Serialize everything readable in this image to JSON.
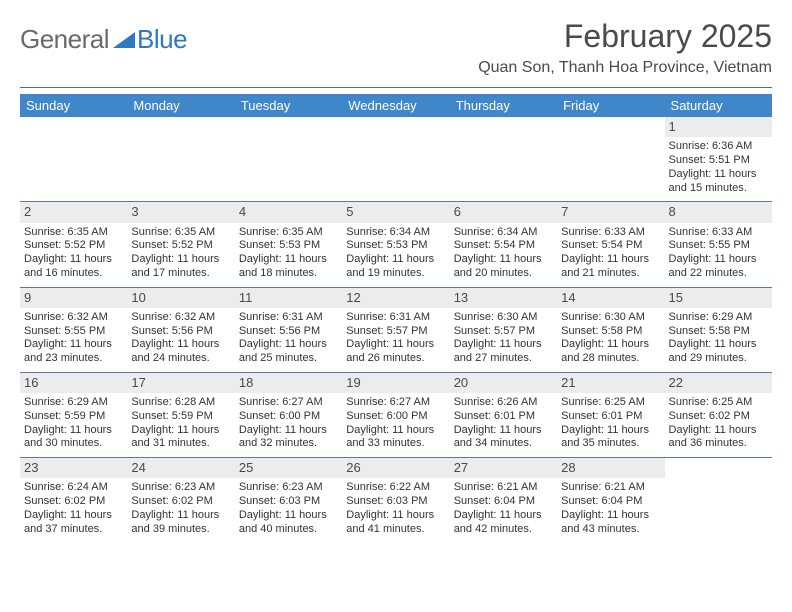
{
  "logo": {
    "text1": "General",
    "text2": "Blue",
    "color1": "#6a6a6a",
    "color2": "#2f78c3"
  },
  "title": "February 2025",
  "location": "Quan Son, Thanh Hoa Province, Vietnam",
  "header_bg": "#3f87c8",
  "daynum_bg": "#ececec",
  "rule_color": "#4a6ea0",
  "day_names": [
    "Sunday",
    "Monday",
    "Tuesday",
    "Wednesday",
    "Thursday",
    "Friday",
    "Saturday"
  ],
  "weeks": [
    [
      {
        "n": "",
        "sr": "",
        "ss": "",
        "dl": ""
      },
      {
        "n": "",
        "sr": "",
        "ss": "",
        "dl": ""
      },
      {
        "n": "",
        "sr": "",
        "ss": "",
        "dl": ""
      },
      {
        "n": "",
        "sr": "",
        "ss": "",
        "dl": ""
      },
      {
        "n": "",
        "sr": "",
        "ss": "",
        "dl": ""
      },
      {
        "n": "",
        "sr": "",
        "ss": "",
        "dl": ""
      },
      {
        "n": "1",
        "sr": "Sunrise: 6:36 AM",
        "ss": "Sunset: 5:51 PM",
        "dl": "Daylight: 11 hours and 15 minutes."
      }
    ],
    [
      {
        "n": "2",
        "sr": "Sunrise: 6:35 AM",
        "ss": "Sunset: 5:52 PM",
        "dl": "Daylight: 11 hours and 16 minutes."
      },
      {
        "n": "3",
        "sr": "Sunrise: 6:35 AM",
        "ss": "Sunset: 5:52 PM",
        "dl": "Daylight: 11 hours and 17 minutes."
      },
      {
        "n": "4",
        "sr": "Sunrise: 6:35 AM",
        "ss": "Sunset: 5:53 PM",
        "dl": "Daylight: 11 hours and 18 minutes."
      },
      {
        "n": "5",
        "sr": "Sunrise: 6:34 AM",
        "ss": "Sunset: 5:53 PM",
        "dl": "Daylight: 11 hours and 19 minutes."
      },
      {
        "n": "6",
        "sr": "Sunrise: 6:34 AM",
        "ss": "Sunset: 5:54 PM",
        "dl": "Daylight: 11 hours and 20 minutes."
      },
      {
        "n": "7",
        "sr": "Sunrise: 6:33 AM",
        "ss": "Sunset: 5:54 PM",
        "dl": "Daylight: 11 hours and 21 minutes."
      },
      {
        "n": "8",
        "sr": "Sunrise: 6:33 AM",
        "ss": "Sunset: 5:55 PM",
        "dl": "Daylight: 11 hours and 22 minutes."
      }
    ],
    [
      {
        "n": "9",
        "sr": "Sunrise: 6:32 AM",
        "ss": "Sunset: 5:55 PM",
        "dl": "Daylight: 11 hours and 23 minutes."
      },
      {
        "n": "10",
        "sr": "Sunrise: 6:32 AM",
        "ss": "Sunset: 5:56 PM",
        "dl": "Daylight: 11 hours and 24 minutes."
      },
      {
        "n": "11",
        "sr": "Sunrise: 6:31 AM",
        "ss": "Sunset: 5:56 PM",
        "dl": "Daylight: 11 hours and 25 minutes."
      },
      {
        "n": "12",
        "sr": "Sunrise: 6:31 AM",
        "ss": "Sunset: 5:57 PM",
        "dl": "Daylight: 11 hours and 26 minutes."
      },
      {
        "n": "13",
        "sr": "Sunrise: 6:30 AM",
        "ss": "Sunset: 5:57 PM",
        "dl": "Daylight: 11 hours and 27 minutes."
      },
      {
        "n": "14",
        "sr": "Sunrise: 6:30 AM",
        "ss": "Sunset: 5:58 PM",
        "dl": "Daylight: 11 hours and 28 minutes."
      },
      {
        "n": "15",
        "sr": "Sunrise: 6:29 AM",
        "ss": "Sunset: 5:58 PM",
        "dl": "Daylight: 11 hours and 29 minutes."
      }
    ],
    [
      {
        "n": "16",
        "sr": "Sunrise: 6:29 AM",
        "ss": "Sunset: 5:59 PM",
        "dl": "Daylight: 11 hours and 30 minutes."
      },
      {
        "n": "17",
        "sr": "Sunrise: 6:28 AM",
        "ss": "Sunset: 5:59 PM",
        "dl": "Daylight: 11 hours and 31 minutes."
      },
      {
        "n": "18",
        "sr": "Sunrise: 6:27 AM",
        "ss": "Sunset: 6:00 PM",
        "dl": "Daylight: 11 hours and 32 minutes."
      },
      {
        "n": "19",
        "sr": "Sunrise: 6:27 AM",
        "ss": "Sunset: 6:00 PM",
        "dl": "Daylight: 11 hours and 33 minutes."
      },
      {
        "n": "20",
        "sr": "Sunrise: 6:26 AM",
        "ss": "Sunset: 6:01 PM",
        "dl": "Daylight: 11 hours and 34 minutes."
      },
      {
        "n": "21",
        "sr": "Sunrise: 6:25 AM",
        "ss": "Sunset: 6:01 PM",
        "dl": "Daylight: 11 hours and 35 minutes."
      },
      {
        "n": "22",
        "sr": "Sunrise: 6:25 AM",
        "ss": "Sunset: 6:02 PM",
        "dl": "Daylight: 11 hours and 36 minutes."
      }
    ],
    [
      {
        "n": "23",
        "sr": "Sunrise: 6:24 AM",
        "ss": "Sunset: 6:02 PM",
        "dl": "Daylight: 11 hours and 37 minutes."
      },
      {
        "n": "24",
        "sr": "Sunrise: 6:23 AM",
        "ss": "Sunset: 6:02 PM",
        "dl": "Daylight: 11 hours and 39 minutes."
      },
      {
        "n": "25",
        "sr": "Sunrise: 6:23 AM",
        "ss": "Sunset: 6:03 PM",
        "dl": "Daylight: 11 hours and 40 minutes."
      },
      {
        "n": "26",
        "sr": "Sunrise: 6:22 AM",
        "ss": "Sunset: 6:03 PM",
        "dl": "Daylight: 11 hours and 41 minutes."
      },
      {
        "n": "27",
        "sr": "Sunrise: 6:21 AM",
        "ss": "Sunset: 6:04 PM",
        "dl": "Daylight: 11 hours and 42 minutes."
      },
      {
        "n": "28",
        "sr": "Sunrise: 6:21 AM",
        "ss": "Sunset: 6:04 PM",
        "dl": "Daylight: 11 hours and 43 minutes."
      },
      {
        "n": "",
        "sr": "",
        "ss": "",
        "dl": ""
      }
    ]
  ]
}
